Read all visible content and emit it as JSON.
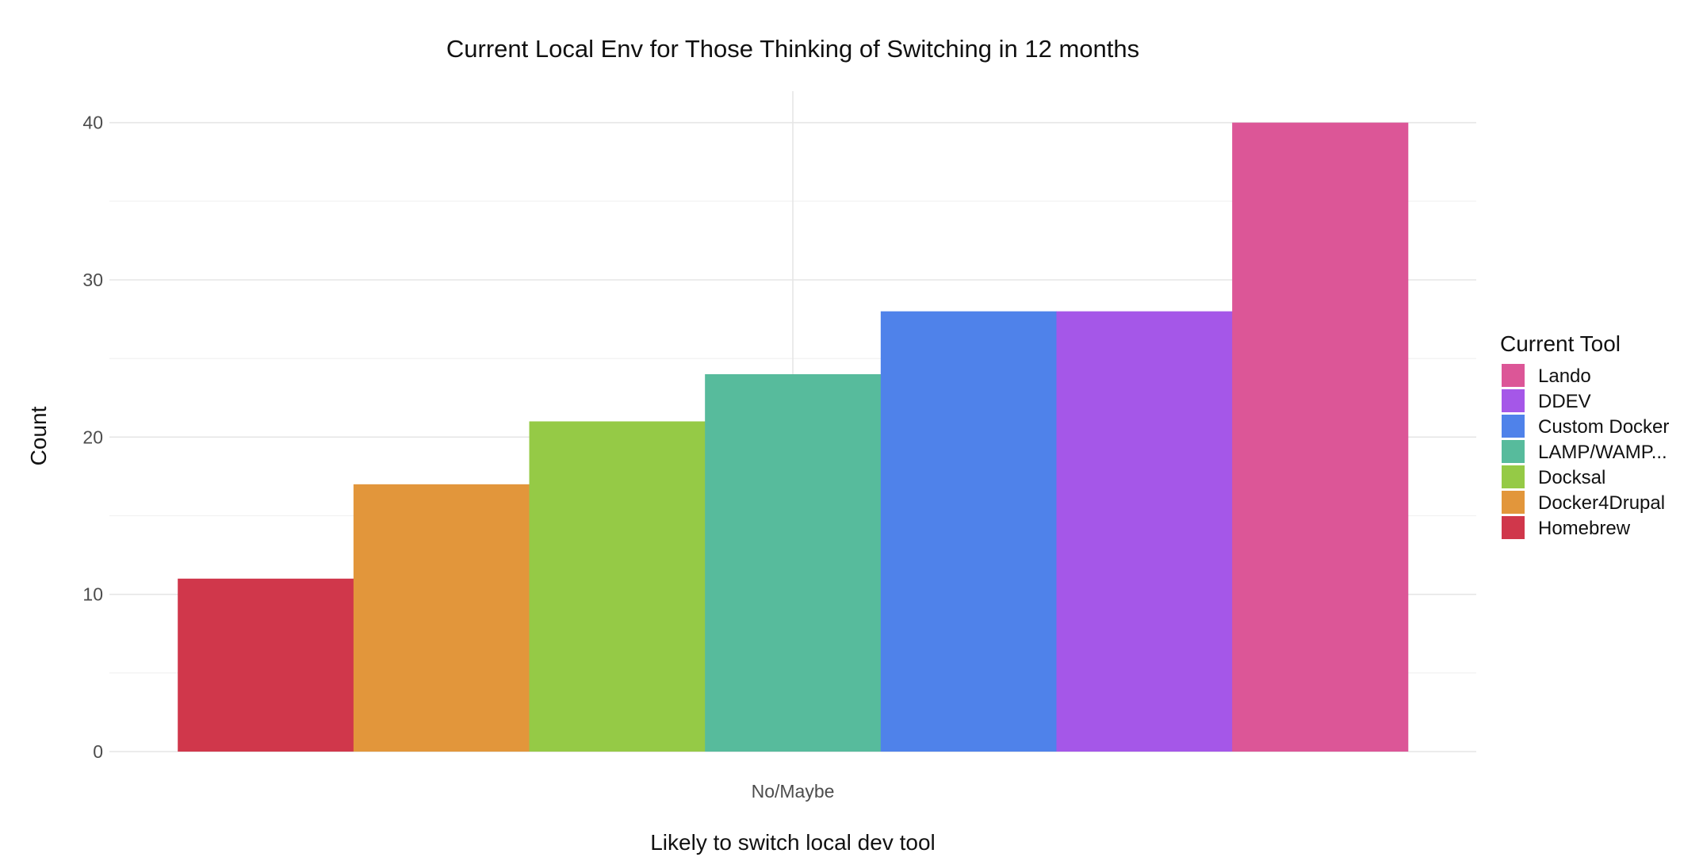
{
  "chart_data": {
    "type": "bar",
    "title": "Current Local Env for Those Thinking of Switching in 12 months",
    "xlabel": "Likely to switch local dev tool",
    "ylabel": "Count",
    "categories": [
      "No/Maybe"
    ],
    "ylim": [
      0,
      42
    ],
    "yticks": [
      0,
      10,
      20,
      30,
      40
    ],
    "grid": true,
    "legend_title": "Current Tool",
    "legend_position": "right",
    "series": [
      {
        "name": "Homebrew",
        "values": [
          11
        ],
        "color": "#d0374b"
      },
      {
        "name": "Docker4Drupal",
        "values": [
          17
        ],
        "color": "#e2963b"
      },
      {
        "name": "Docksal",
        "values": [
          21
        ],
        "color": "#95ca46"
      },
      {
        "name": "LAMP/WAMP...",
        "values": [
          24
        ],
        "color": "#57bb9c"
      },
      {
        "name": "Custom Docker",
        "values": [
          28
        ],
        "color": "#4f82ea"
      },
      {
        "name": "DDEV",
        "values": [
          28
        ],
        "color": "#a557e8"
      },
      {
        "name": "Lando",
        "values": [
          40
        ],
        "color": "#dc5697"
      }
    ],
    "legend_order": [
      "Lando",
      "DDEV",
      "Custom Docker",
      "LAMP/WAMP...",
      "Docksal",
      "Docker4Drupal",
      "Homebrew"
    ]
  }
}
